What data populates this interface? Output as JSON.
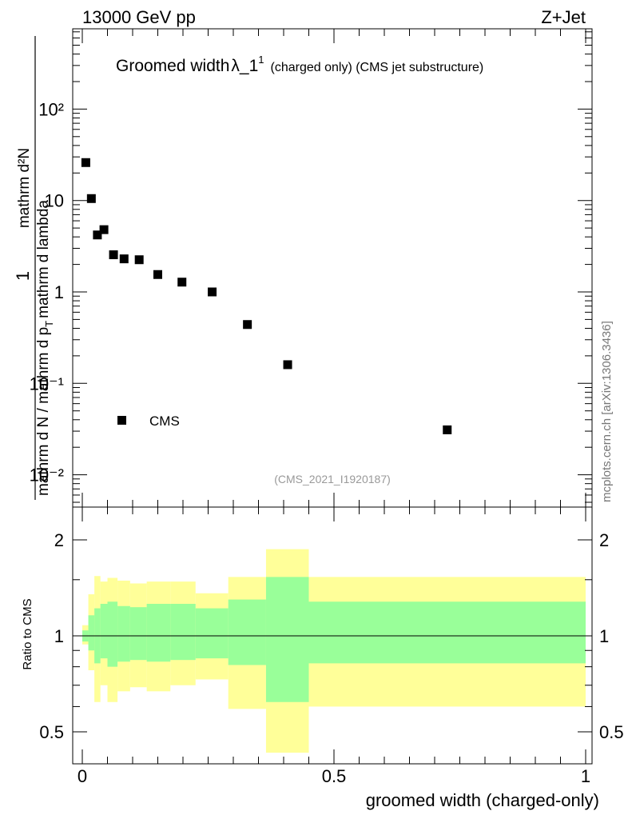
{
  "header": {
    "left": "13000 GeV pp",
    "right": "Z+Jet"
  },
  "title": {
    "main": "Groomed width",
    "lambda": "λ_1",
    "sup": "1",
    "sub": "(charged only) (CMS jet substructure)"
  },
  "watermark": "mcplots.cern.ch [arXiv:1306.3436]",
  "analysis_id": "(CMS_2021_I1920187)",
  "top_ylabel": {
    "frac_num": "1",
    "frac_den": "mathrm d N / mathrm d p",
    "sub_T1": "T",
    "mid": "mathrm d p",
    "sub_T2": "T",
    "rest": "mathrm d lambda",
    "numer2": "mathrm d²N",
    "den2": "mathrm d"
  },
  "bottom_ylabel": "Ratio to CMS",
  "xlabel": "groomed width (charged-only)",
  "legend": {
    "label": "CMS"
  },
  "colors": {
    "yellow": "#ffff99",
    "green": "#99ff99",
    "marker": "#000000"
  },
  "chart_data": [
    {
      "type": "scatter",
      "scale": "log",
      "ylim": [
        0.005,
        800
      ],
      "xlim": [
        -0.02,
        1.02
      ],
      "y_ticks": [
        "10⁻²",
        "10⁻¹",
        "1",
        "10",
        "10²"
      ],
      "series": [
        {
          "name": "CMS",
          "x": [
            0.007,
            0.018,
            0.03,
            0.043,
            0.062,
            0.083,
            0.113,
            0.15,
            0.198,
            0.258,
            0.328,
            0.408,
            0.725
          ],
          "y": [
            26.0,
            10.5,
            4.2,
            4.8,
            2.55,
            2.3,
            2.25,
            1.55,
            1.28,
            1.0,
            0.44,
            0.16,
            0.031
          ]
        }
      ]
    },
    {
      "type": "area",
      "xlim": [
        -0.02,
        1.02
      ],
      "ylim": [
        0.43,
        2.3
      ],
      "y_ticks": [
        "0.5",
        "1",
        "2"
      ],
      "x_ticks": [
        "0",
        "0.5",
        "1"
      ],
      "reference": 1.0,
      "bins": [
        {
          "x0": 0.0,
          "x1": 0.012,
          "yl": 0.94,
          "yh": 1.08,
          "gl": 0.96,
          "gh": 1.04
        },
        {
          "x0": 0.012,
          "x1": 0.024,
          "yl": 0.78,
          "yh": 1.35,
          "gl": 0.9,
          "gh": 1.16
        },
        {
          "x0": 0.024,
          "x1": 0.036,
          "yl": 0.62,
          "yh": 1.54,
          "gl": 0.82,
          "gh": 1.22
        },
        {
          "x0": 0.036,
          "x1": 0.05,
          "yl": 0.7,
          "yh": 1.48,
          "gl": 0.85,
          "gh": 1.26
        },
        {
          "x0": 0.05,
          "x1": 0.07,
          "yl": 0.62,
          "yh": 1.52,
          "gl": 0.8,
          "gh": 1.28
        },
        {
          "x0": 0.07,
          "x1": 0.095,
          "yl": 0.67,
          "yh": 1.49,
          "gl": 0.83,
          "gh": 1.24
        },
        {
          "x0": 0.095,
          "x1": 0.128,
          "yl": 0.69,
          "yh": 1.46,
          "gl": 0.84,
          "gh": 1.23
        },
        {
          "x0": 0.128,
          "x1": 0.175,
          "yl": 0.67,
          "yh": 1.48,
          "gl": 0.83,
          "gh": 1.26
        },
        {
          "x0": 0.175,
          "x1": 0.225,
          "yl": 0.7,
          "yh": 1.48,
          "gl": 0.84,
          "gh": 1.26
        },
        {
          "x0": 0.225,
          "x1": 0.29,
          "yl": 0.73,
          "yh": 1.36,
          "gl": 0.85,
          "gh": 1.22
        },
        {
          "x0": 0.29,
          "x1": 0.365,
          "yl": 0.59,
          "yh": 1.53,
          "gl": 0.81,
          "gh": 1.3
        },
        {
          "x0": 0.365,
          "x1": 0.45,
          "yl": 0.43,
          "yh": 1.87,
          "gl": 0.62,
          "gh": 1.53
        },
        {
          "x0": 0.45,
          "x1": 1.0,
          "yl": 0.6,
          "yh": 1.53,
          "gl": 0.82,
          "gh": 1.28
        }
      ]
    }
  ]
}
